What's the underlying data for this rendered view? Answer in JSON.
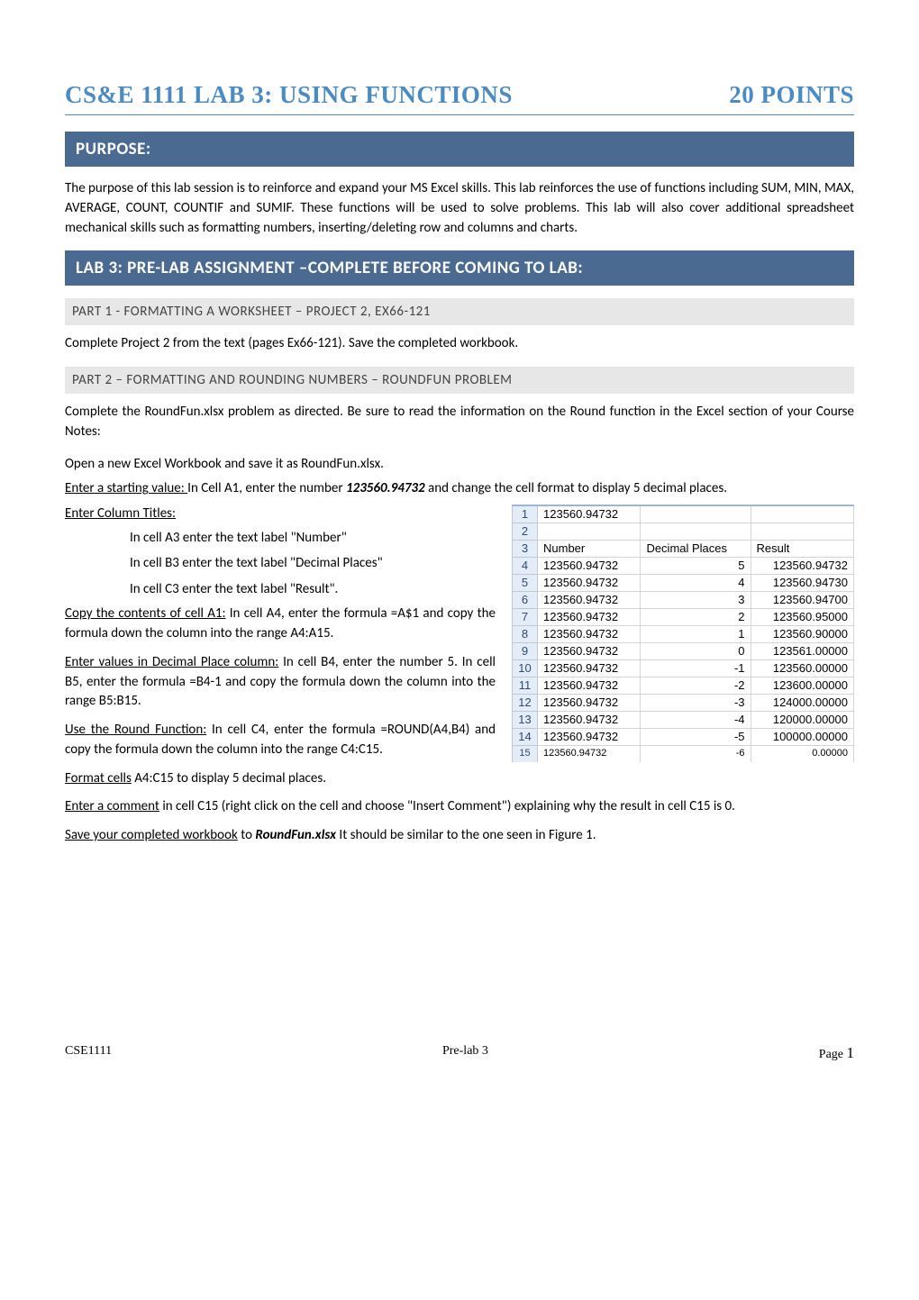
{
  "title": {
    "left": "CS&E 1111 LAB 3: USING FUNCTIONS",
    "right": "20 POINTS",
    "color": "#4a8bc4"
  },
  "purpose": {
    "heading": "PURPOSE:",
    "text": "The purpose of this lab session is to reinforce and expand your MS Excel skills. This lab reinforces the use of functions including SUM, MIN, MAX, AVERAGE, COUNT, COUNTIF and SUMIF.  These functions will be used to solve problems. This lab will also cover additional spreadsheet mechanical skills such as formatting numbers, inserting/deleting row and columns and charts."
  },
  "prelab": {
    "heading": "LAB 3: PRE-LAB ASSIGNMENT –COMPLETE BEFORE COMING TO LAB:",
    "part1": {
      "heading": "PART 1 - FORMATTING A WORKSHEET – PROJECT 2, EX66-121",
      "text": "Complete Project 2 from the text  (pages Ex66-121). Save the completed workbook."
    },
    "part2": {
      "heading": "PART 2 – FORMATTING AND ROUNDING NUMBERS – ROUNDFUN PROBLEM",
      "intro": "Complete the RoundFun.xlsx problem as directed.  Be sure to read the information on the Round function in the Excel section of your Course Notes:",
      "open": "Open a new Excel Workbook and save it as RoundFun.xlsx.",
      "start_u": "Enter a starting value: ",
      "start_rest_a": "In Cell A1, enter the number ",
      "start_num": "123560.94732",
      "start_rest_b": " and change the cell format to display 5 decimal places.",
      "coltitles_u": "Enter Column Titles:",
      "coltitles_space": " ",
      "ct1": "In cell A3 enter the text label \"Number\"",
      "ct2": "In cell B3 enter the text label \"Decimal Places\"",
      "ct3": "In cell C3 enter the text label \"Result\".",
      "copy_u": "Copy the contents of cell A1:",
      "copy_rest": " In cell A4, enter the formula =A$1 and copy the formula down the column into the range A4:A15.",
      "dp_u": "Enter values in Decimal Place column:",
      "dp_rest": " In cell B4, enter the number 5.  In cell B5, enter the formula =B4-1 and copy the formula down the column into the range B5:B15.",
      "round_u": "Use the Round Function:",
      "round_rest": " In cell C4, enter the formula =ROUND(A4,B4) and copy the formula down the column into the range C4:C15.",
      "format_u": "Format cells",
      "format_rest": " A4:C15 to display 5 decimal places.",
      "comment_u": "Enter a comment",
      "comment_rest": " in cell C15 (right click on the cell and choose \"Insert Comment\") explaining why the result in cell C15 is 0.",
      "save_u": "Save your completed workbook",
      "save_rest_a": " to ",
      "save_file": "RoundFun.xlsx",
      "save_rest_b": " It should be similar to the one seen in Figure 1."
    }
  },
  "spreadsheet": {
    "headers": {
      "a": "Number",
      "b": "Decimal Places",
      "c": "Result"
    },
    "colors": {
      "rowhdr_bg": "#e4ecf7",
      "rowhdr_border": "#c0c8d8",
      "cell_border": "#d4d4d4",
      "cell_bg": "#ffffff"
    },
    "rows": [
      {
        "n": "1",
        "a": "123560.94732",
        "b": "",
        "c": ""
      },
      {
        "n": "2",
        "a": "",
        "b": "",
        "c": ""
      },
      {
        "n": "3",
        "a": "Number",
        "b": "Decimal Places",
        "c": "Result",
        "hdr": true
      },
      {
        "n": "4",
        "a": "123560.94732",
        "b": "5",
        "c": "123560.94732"
      },
      {
        "n": "5",
        "a": "123560.94732",
        "b": "4",
        "c": "123560.94730"
      },
      {
        "n": "6",
        "a": "123560.94732",
        "b": "3",
        "c": "123560.94700"
      },
      {
        "n": "7",
        "a": "123560.94732",
        "b": "2",
        "c": "123560.95000"
      },
      {
        "n": "8",
        "a": "123560.94732",
        "b": "1",
        "c": "123560.90000"
      },
      {
        "n": "9",
        "a": "123560.94732",
        "b": "0",
        "c": "123561.00000"
      },
      {
        "n": "10",
        "a": "123560.94732",
        "b": "-1",
        "c": "123560.00000"
      },
      {
        "n": "11",
        "a": "123560.94732",
        "b": "-2",
        "c": "123600.00000"
      },
      {
        "n": "12",
        "a": "123560.94732",
        "b": "-3",
        "c": "124000.00000"
      },
      {
        "n": "13",
        "a": "123560.94732",
        "b": "-4",
        "c": "120000.00000"
      },
      {
        "n": "14",
        "a": "123560.94732",
        "b": "-5",
        "c": "100000.00000"
      },
      {
        "n": "15",
        "a": "123560.94732",
        "b": "-6",
        "c": "0.00000",
        "cut": true
      }
    ]
  },
  "footer": {
    "left": "CSE1111",
    "center": "Pre-lab 3",
    "right_label": "Page ",
    "right_num": "1"
  }
}
